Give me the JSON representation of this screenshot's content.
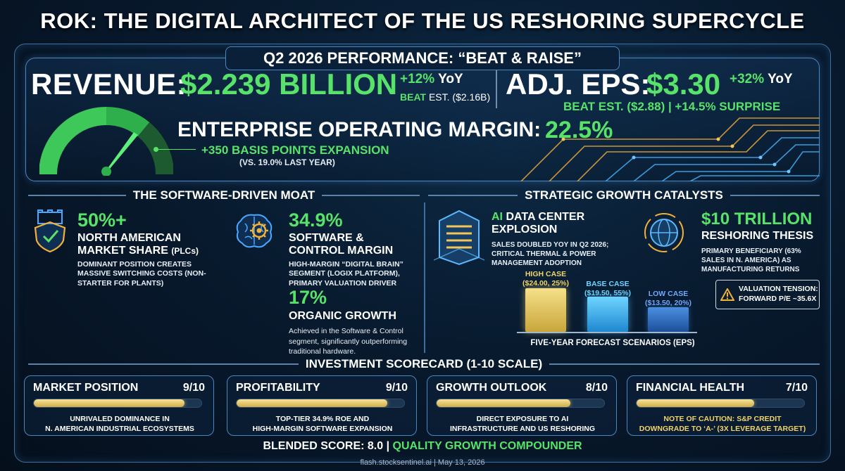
{
  "title": "ROK: THE DIGITAL ARCHITECT OF THE US RESHORING SUPERCYCLE",
  "performance": {
    "heading": "Q2 2026 PERFORMANCE: “BEAT & RAISE”",
    "revenue_label": "REVENUE:",
    "revenue_value": "$2.239 BILLION",
    "revenue_yoy_pct": "+12%",
    "revenue_yoy_word": "YoY",
    "revenue_beat": "BEAT",
    "revenue_est": "EST. ($2.16B)",
    "eps_label": "ADJ. EPS:",
    "eps_value": "$3.30",
    "eps_yoy_pct": "+32%",
    "eps_yoy_word": "YoY",
    "eps_beat": "BEAT EST. ($2.88) | +14.5% SURPRISE",
    "margin_label": "ENTERPRISE OPERATING MARGIN:",
    "margin_value": "22.5%",
    "margin_expansion": "+350 BASIS POINTS EXPANSION",
    "margin_vs": "(VS. 19.0% LAST YEAR)"
  },
  "moat": {
    "heading": "THE SOFTWARE-DRIVEN MOAT",
    "items": [
      {
        "stat": "50%+",
        "head1": "NORTH AMERICAN",
        "head2": "MARKET SHARE",
        "head2_suffix": "(PLCs)",
        "desc": "DOMINANT POSITION CREATES MASSIVE SWITCHING COSTS (NON-STARTER FOR PLANTS)"
      },
      {
        "stat": "34.9%",
        "head1": "SOFTWARE &",
        "head2": "CONTROL MARGIN",
        "desc": "HIGH-MARGIN “DIGITAL BRAIN” SEGMENT (LOGIX PLATFORM), PRIMARY VALUATION DRIVER"
      },
      {
        "stat": "17%",
        "head1": "ORGANIC GROWTH",
        "desc": "Achieved in the Software & Control segment, significantly outperforming traditional hardware."
      }
    ]
  },
  "growth": {
    "heading": "STRATEGIC GROWTH CATALYSTS",
    "ai_prefix": "AI",
    "ai_title_rest": "DATA CENTER",
    "ai_title2": "EXPLOSION",
    "ai_desc": "SALES DOUBLED YOY IN Q2 2026; CRITICAL THERMAL & POWER MANAGEMENT ADOPTION",
    "reshoring_value": "$10 TRILLION",
    "reshoring_title": "RESHORING THESIS",
    "reshoring_desc": "PRIMARY BENEFICIARY (63% SALES IN N. AMERICA) AS MANUFACTURING RETURNS",
    "valuation_title": "VALUATION TENSION:",
    "valuation_desc": "FORWARD P/E ~35.6X",
    "forecast_caption": "FIVE-YEAR FORECAST SCENARIOS (EPS)"
  },
  "chart_data": {
    "type": "bar",
    "categories": [
      "HIGH CASE",
      "BASE CASE",
      "LOW CASE"
    ],
    "values": [
      24.0,
      19.5,
      13.5
    ],
    "probabilities": [
      "25%",
      "55%",
      "20%"
    ],
    "labels": [
      "($24.00, 25%)",
      "($19.50, 55%)",
      "($13.50, 20%)"
    ],
    "colors": [
      "#e2c463",
      "#3fb4f0",
      "#3272c8"
    ],
    "title": "FIVE-YEAR FORECAST SCENARIOS (EPS)"
  },
  "scorecard": {
    "heading": "INVESTMENT SCORECARD (1-10 SCALE)",
    "cards": [
      {
        "title": "MARKET POSITION",
        "score": "9/10",
        "fill": 0.9,
        "desc1": "UNRIVALED DOMINANCE IN",
        "desc2": "N. AMERICAN INDUSTRIAL ECOSYSTEMS",
        "desc_color": "#ffffff"
      },
      {
        "title": "PROFITABILITY",
        "score": "9/10",
        "fill": 0.9,
        "desc1": "TOP-TIER 34.9% ROE AND",
        "desc2": "HIGH-MARGIN SOFTWARE EXPANSION",
        "desc_color": "#ffffff"
      },
      {
        "title": "GROWTH OUTLOOK",
        "score": "8/10",
        "fill": 0.8,
        "desc1": "DIRECT EXPOSURE TO AI",
        "desc2": "INFRASTRUCTURE AND US RESHORING",
        "desc_color": "#ffffff"
      },
      {
        "title": "FINANCIAL HEALTH",
        "score": "7/10",
        "fill": 0.7,
        "desc1": "NOTE OF CAUTION: S&P CREDIT",
        "desc2": "DOWNGRADE TO ‘A-’ (3X LEVERAGE TARGET)",
        "desc_color": "#f2d36b"
      }
    ],
    "blended_label": "BLENDED SCORE: 8.0 |",
    "blended_tag": "QUALITY GROWTH COMPOUNDER"
  },
  "footer": "flash.stocksentinel.ai | May 13, 2026"
}
